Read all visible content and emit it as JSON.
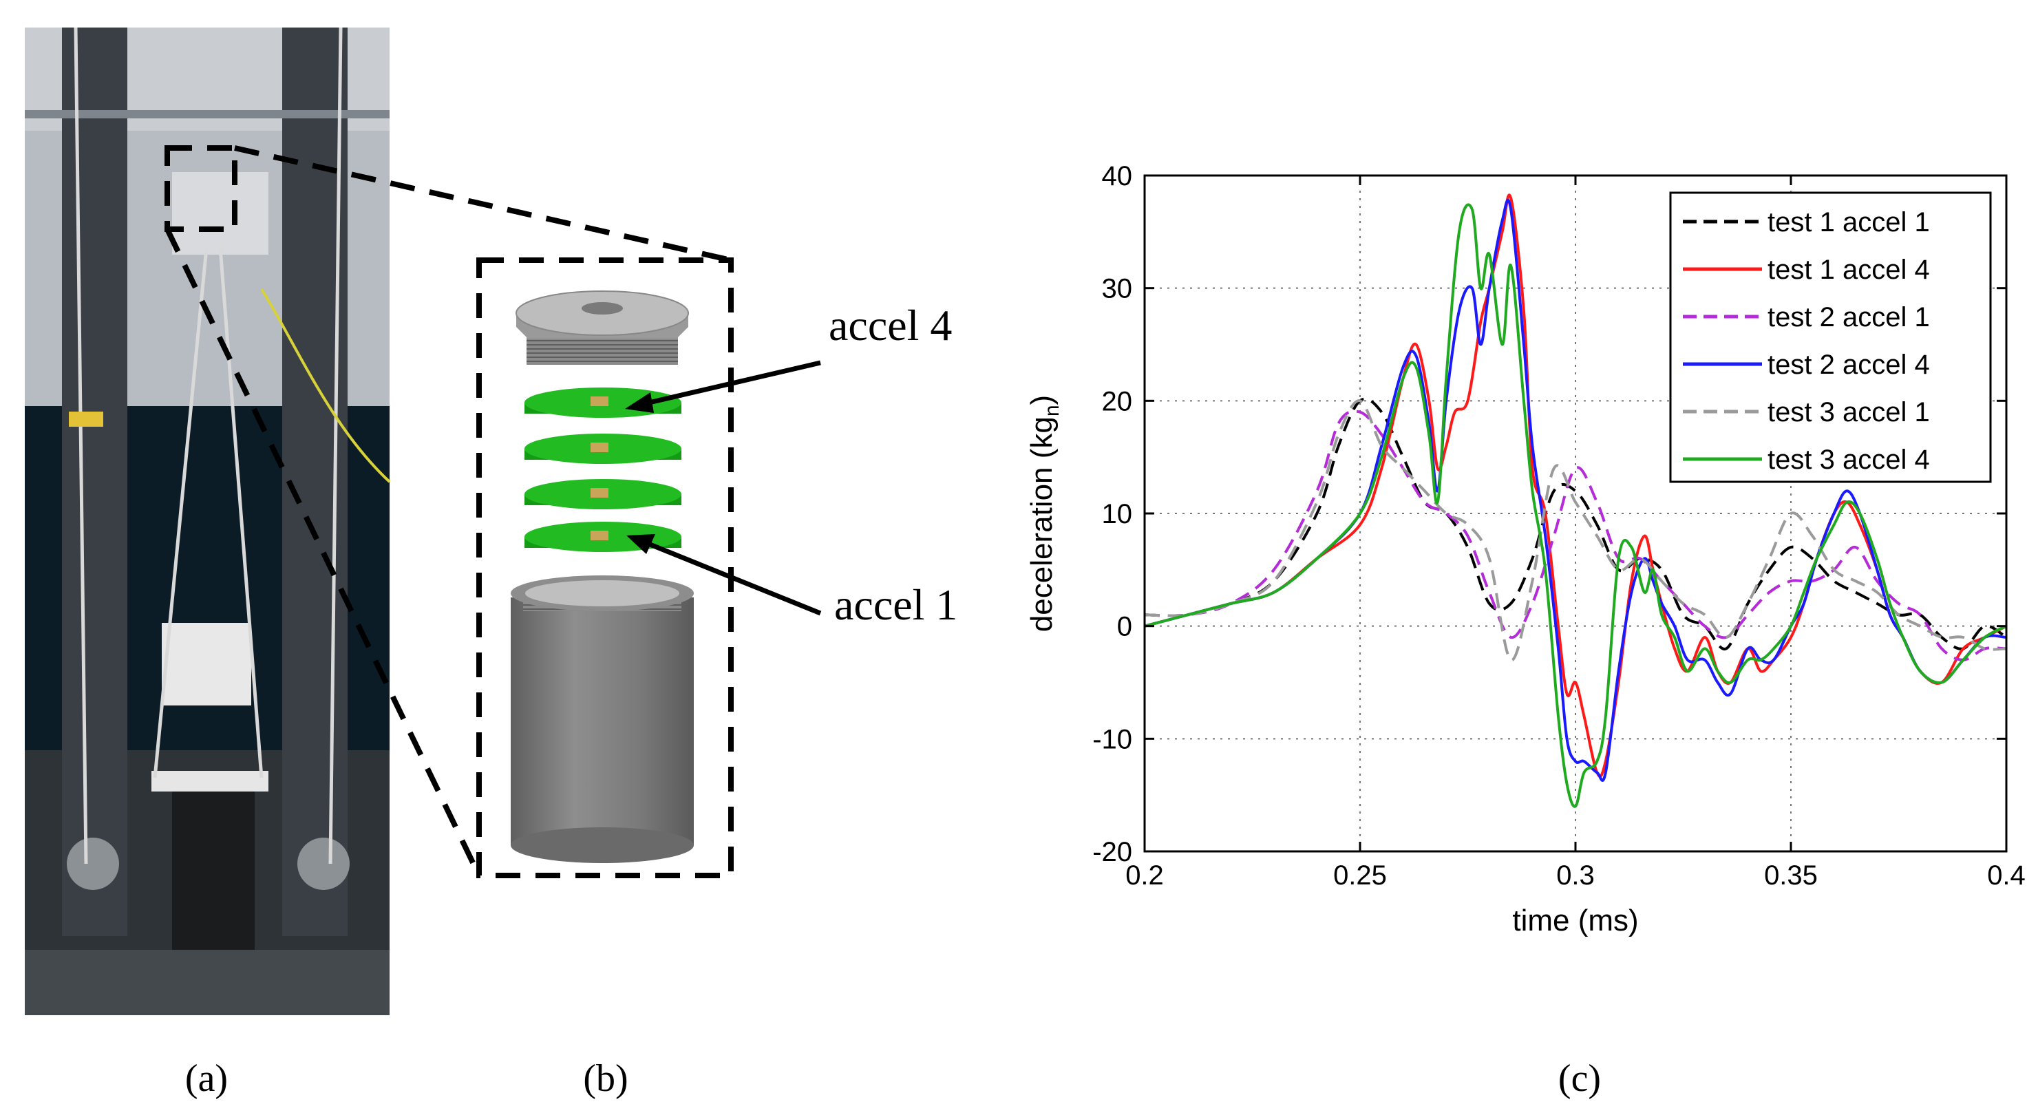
{
  "panels": {
    "a": {
      "label": "(a)"
    },
    "b": {
      "label": "(b)",
      "annotations": [
        "accel 4",
        "accel 1"
      ]
    },
    "c": {
      "label": "(c)"
    }
  },
  "colors": {
    "black": "#000000",
    "red": "#ff1a1a",
    "magenta": "#b52bd8",
    "blue": "#1a1aff",
    "gray": "#9a9a9a",
    "green": "#1faa1f",
    "disk": "#22bb22",
    "steel": "#7d7d7d"
  },
  "chart_data": {
    "type": "line",
    "title": "",
    "xlabel": "time (ms)",
    "ylabel": "deceleration (kg",
    "ylabel_sub": "n",
    "ylabel_close": ")",
    "xlim": [
      0.2,
      0.4
    ],
    "ylim": [
      -20,
      40
    ],
    "xticks": [
      0.2,
      0.25,
      0.3,
      0.35,
      0.4
    ],
    "xtick_labels": [
      "0.2",
      "0.25",
      "0.3",
      "0.35",
      "0.4"
    ],
    "yticks": [
      -20,
      -10,
      0,
      10,
      20,
      30,
      40
    ],
    "ytick_labels": [
      "-20",
      "-10",
      "0",
      "10",
      "20",
      "30",
      "40"
    ],
    "grid": true,
    "legend_position": "top-right",
    "series": [
      {
        "name": "test 1 accel 1",
        "color": "#000000",
        "dash": true,
        "x": [
          0.2,
          0.21,
          0.22,
          0.23,
          0.24,
          0.245,
          0.25,
          0.255,
          0.26,
          0.265,
          0.27,
          0.275,
          0.28,
          0.285,
          0.29,
          0.295,
          0.3,
          0.305,
          0.31,
          0.315,
          0.32,
          0.325,
          0.33,
          0.335,
          0.34,
          0.345,
          0.35,
          0.355,
          0.36,
          0.365,
          0.37,
          0.375,
          0.38,
          0.385,
          0.39,
          0.395,
          0.4
        ],
        "y": [
          1,
          1,
          2,
          4,
          10,
          16,
          20,
          19,
          15,
          11,
          10,
          7,
          2,
          2,
          6,
          12,
          12,
          9,
          5,
          6,
          5,
          1,
          0,
          -2,
          2,
          5,
          7,
          6,
          4,
          3,
          2,
          1,
          1,
          -1,
          -2,
          0,
          -1
        ]
      },
      {
        "name": "test 1 accel 4",
        "color": "#ff1a1a",
        "dash": false,
        "x": [
          0.2,
          0.21,
          0.22,
          0.23,
          0.24,
          0.25,
          0.255,
          0.26,
          0.263,
          0.266,
          0.268,
          0.27,
          0.272,
          0.275,
          0.278,
          0.28,
          0.283,
          0.285,
          0.288,
          0.29,
          0.293,
          0.296,
          0.298,
          0.3,
          0.302,
          0.305,
          0.307,
          0.31,
          0.313,
          0.316,
          0.318,
          0.32,
          0.323,
          0.326,
          0.33,
          0.333,
          0.336,
          0.34,
          0.343,
          0.346,
          0.35,
          0.353,
          0.356,
          0.36,
          0.363,
          0.366,
          0.37,
          0.373,
          0.376,
          0.38,
          0.385,
          0.39,
          0.395,
          0.4
        ],
        "y": [
          0,
          1,
          2,
          3,
          6,
          9,
          14,
          22,
          25,
          20,
          14,
          16,
          19,
          20,
          27,
          30,
          35,
          38,
          28,
          14,
          10,
          0,
          -6,
          -5,
          -8,
          -13,
          -12,
          -5,
          4,
          8,
          5,
          2,
          -2,
          -4,
          -1,
          -4,
          -5,
          -2,
          -4,
          -3,
          -1,
          2,
          6,
          10,
          11,
          9,
          5,
          1,
          -1,
          -4,
          -5,
          -2,
          -1,
          0
        ]
      },
      {
        "name": "test 2 accel 1",
        "color": "#b52bd8",
        "dash": true,
        "x": [
          0.2,
          0.21,
          0.22,
          0.23,
          0.24,
          0.245,
          0.25,
          0.255,
          0.26,
          0.265,
          0.27,
          0.275,
          0.28,
          0.285,
          0.29,
          0.295,
          0.3,
          0.305,
          0.31,
          0.315,
          0.32,
          0.325,
          0.33,
          0.335,
          0.34,
          0.345,
          0.35,
          0.355,
          0.36,
          0.365,
          0.37,
          0.375,
          0.38,
          0.385,
          0.39,
          0.395,
          0.4
        ],
        "y": [
          1,
          1,
          2,
          5,
          12,
          18,
          19,
          17,
          14,
          11,
          10,
          8,
          3,
          -1,
          2,
          8,
          14,
          11,
          6,
          6,
          4,
          2,
          0,
          -1,
          1,
          3,
          4,
          4,
          5,
          7,
          4,
          2,
          1,
          -2,
          -3,
          -2,
          -2
        ]
      },
      {
        "name": "test 2 accel 4",
        "color": "#1a1aff",
        "dash": false,
        "x": [
          0.2,
          0.21,
          0.22,
          0.23,
          0.24,
          0.25,
          0.255,
          0.26,
          0.263,
          0.266,
          0.268,
          0.27,
          0.273,
          0.276,
          0.278,
          0.28,
          0.283,
          0.285,
          0.288,
          0.29,
          0.293,
          0.296,
          0.298,
          0.3,
          0.302,
          0.305,
          0.307,
          0.31,
          0.313,
          0.316,
          0.318,
          0.32,
          0.323,
          0.326,
          0.33,
          0.333,
          0.336,
          0.34,
          0.343,
          0.346,
          0.35,
          0.353,
          0.356,
          0.36,
          0.363,
          0.366,
          0.37,
          0.373,
          0.376,
          0.38,
          0.385,
          0.39,
          0.395,
          0.4
        ],
        "y": [
          0,
          1,
          2,
          3,
          6,
          10,
          16,
          23,
          24,
          18,
          12,
          20,
          28,
          30,
          25,
          30,
          36,
          37,
          25,
          16,
          8,
          -2,
          -10,
          -12,
          -12,
          -13,
          -13,
          -4,
          3,
          6,
          4,
          2,
          0,
          -3,
          -3,
          -5,
          -6,
          -2,
          -3,
          -3,
          0,
          2,
          6,
          10,
          12,
          10,
          5,
          1,
          -1,
          -4,
          -5,
          -3,
          -1,
          -1
        ]
      },
      {
        "name": "test 3 accel 1",
        "color": "#9a9a9a",
        "dash": true,
        "x": [
          0.2,
          0.21,
          0.22,
          0.23,
          0.24,
          0.245,
          0.25,
          0.255,
          0.26,
          0.265,
          0.27,
          0.275,
          0.28,
          0.285,
          0.29,
          0.295,
          0.3,
          0.305,
          0.31,
          0.315,
          0.32,
          0.325,
          0.33,
          0.335,
          0.34,
          0.345,
          0.35,
          0.355,
          0.36,
          0.365,
          0.37,
          0.375,
          0.38,
          0.385,
          0.39,
          0.395,
          0.4
        ],
        "y": [
          1,
          1,
          2,
          4,
          11,
          17,
          20,
          16,
          14,
          12,
          10,
          9,
          6,
          -3,
          4,
          14,
          11,
          8,
          5,
          6,
          4,
          2,
          1,
          -1,
          2,
          6,
          10,
          8,
          5,
          4,
          3,
          1,
          0,
          -1,
          -1,
          -2,
          -2
        ]
      },
      {
        "name": "test 3 accel 4",
        "color": "#1faa1f",
        "dash": false,
        "x": [
          0.2,
          0.21,
          0.22,
          0.23,
          0.24,
          0.25,
          0.255,
          0.26,
          0.263,
          0.266,
          0.268,
          0.27,
          0.273,
          0.276,
          0.278,
          0.28,
          0.283,
          0.285,
          0.288,
          0.29,
          0.293,
          0.296,
          0.298,
          0.3,
          0.302,
          0.305,
          0.307,
          0.31,
          0.313,
          0.316,
          0.318,
          0.32,
          0.323,
          0.326,
          0.33,
          0.333,
          0.336,
          0.34,
          0.343,
          0.346,
          0.35,
          0.353,
          0.356,
          0.36,
          0.363,
          0.366,
          0.37,
          0.373,
          0.376,
          0.38,
          0.385,
          0.39,
          0.395,
          0.4
        ],
        "y": [
          0,
          1,
          2,
          3,
          6,
          10,
          15,
          22,
          23,
          17,
          11,
          22,
          35,
          37,
          30,
          33,
          25,
          32,
          20,
          12,
          5,
          -8,
          -14,
          -16,
          -13,
          -12,
          -8,
          6,
          7,
          3,
          5,
          1,
          -1,
          -4,
          -2,
          -4,
          -5,
          -3,
          -3,
          -2,
          0,
          3,
          6,
          9,
          11,
          10,
          6,
          2,
          -1,
          -4,
          -5,
          -3,
          -1,
          0
        ]
      }
    ]
  }
}
